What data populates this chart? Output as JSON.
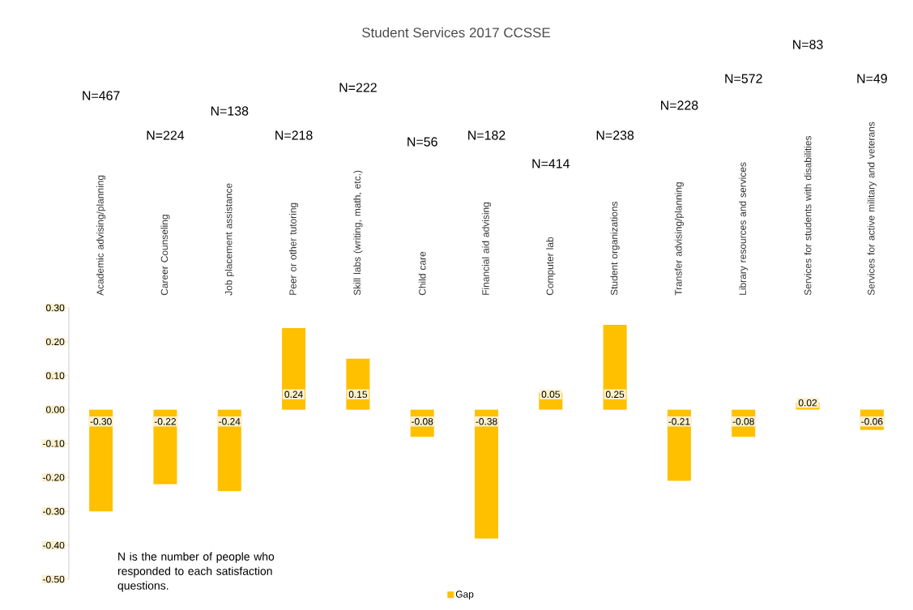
{
  "chart_data": {
    "type": "bar",
    "title": "Student Services 2017 CCSSE",
    "categories": [
      "Academic advising/planning",
      "Career Counseling",
      "Job placement assistance",
      "Peer or other tutoring",
      "Skill labs (writing, math, etc.)",
      "Child care",
      "Financial aid advising",
      "Computer lab",
      "Student organizations",
      "Transfer advising/planning",
      "Library resources and services",
      "Services for students with disabilities",
      "Services for active military and veterans"
    ],
    "series": [
      {
        "name": "Gap",
        "color": "#ffc000",
        "values": [
          -0.3,
          -0.22,
          -0.24,
          0.24,
          0.15,
          -0.08,
          -0.38,
          0.05,
          0.25,
          -0.21,
          -0.08,
          0.02,
          -0.06
        ],
        "value_labels": [
          "-0.30",
          "-0.22",
          "-0.24",
          "0.24",
          "0.15",
          "-0.08",
          "-0.38",
          "0.05",
          "0.25",
          "-0.21",
          "-0.08",
          "0.02",
          "-0.06"
        ]
      }
    ],
    "ylim": [
      -0.5,
      0.3
    ],
    "yticks": [
      {
        "value": -0.5,
        "label": "-0.50"
      },
      {
        "value": -0.4,
        "label": "-0.40"
      },
      {
        "value": -0.3,
        "label": "-0.30"
      },
      {
        "value": -0.2,
        "label": "-0.20"
      },
      {
        "value": -0.1,
        "label": "-0.10"
      },
      {
        "value": 0,
        "label": "0.00"
      },
      {
        "value": 0.1,
        "label": "0.10"
      },
      {
        "value": 0.2,
        "label": "0.20"
      },
      {
        "value": 0.3,
        "label": "0.30"
      }
    ],
    "legend": "bottom",
    "annotations": [
      "N=467",
      "N=224",
      "N=138",
      "N=218",
      "N=222",
      "N=56",
      "N=182",
      "N=414",
      "N=238",
      "N=228",
      "N=572",
      "N=83",
      "N=49",
      "N is the number of people who responded to each satisfaction questions."
    ]
  }
}
